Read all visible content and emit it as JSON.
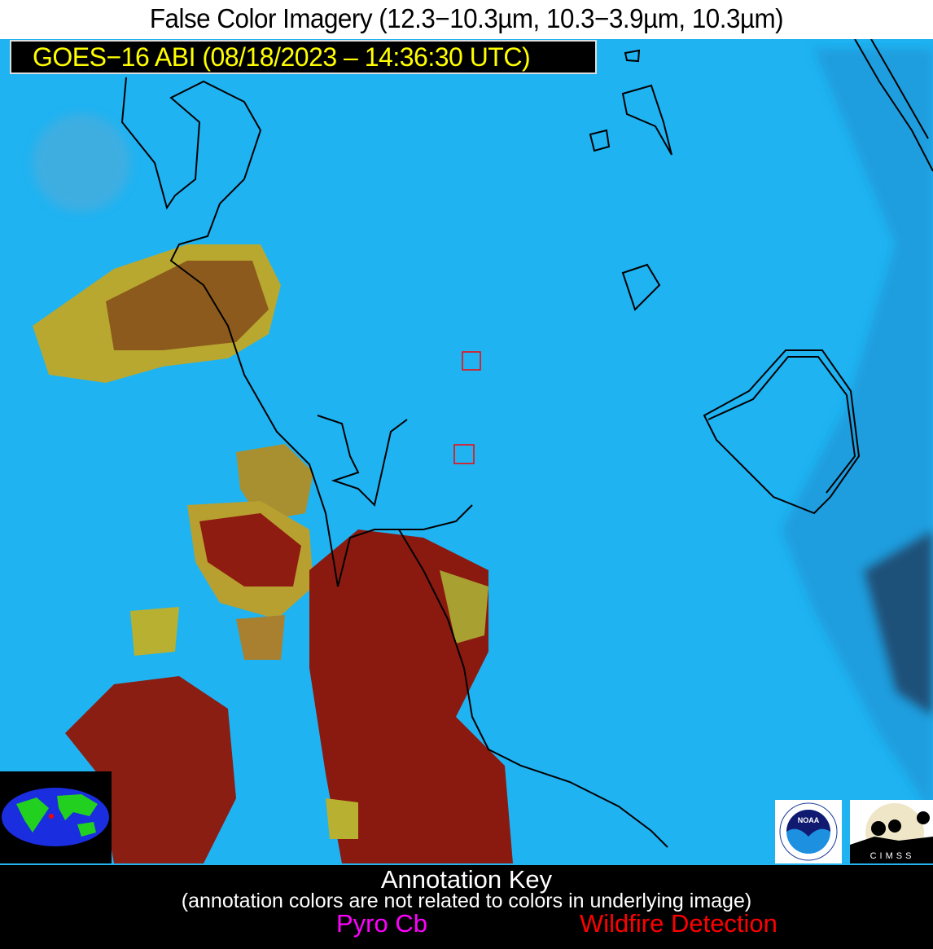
{
  "header": {
    "title": "False Color Imagery (12.3−10.3µm, 10.3−3.9µm, 10.3µm)"
  },
  "image": {
    "subtitle": "GOES−16 ABI (08/18/2023 – 14:36:30 UTC)",
    "background_color": "#1fb3f2",
    "smoke_color": "#8a1c10",
    "edge_color": "#b8b030",
    "wildfire_detection_marker_color": "#ff0000",
    "wildfire_detection_count": 2
  },
  "logos": {
    "noaa": "NOAA",
    "noaa_ring": "NATIONAL OCEANIC AND ATMOSPHERIC ADMINISTRATION · U.S. DEPARTMENT OF COMMERCE",
    "cimss": "CIMSS"
  },
  "key": {
    "title": "Annotation Key",
    "note": "(annotation colors are not related to colors in underlying image)",
    "pyro_cb": "Pyro Cb",
    "pyro_cb_color": "#ff00ff",
    "wildfire": "Wildfire Detection",
    "wildfire_color": "#ff0000"
  }
}
